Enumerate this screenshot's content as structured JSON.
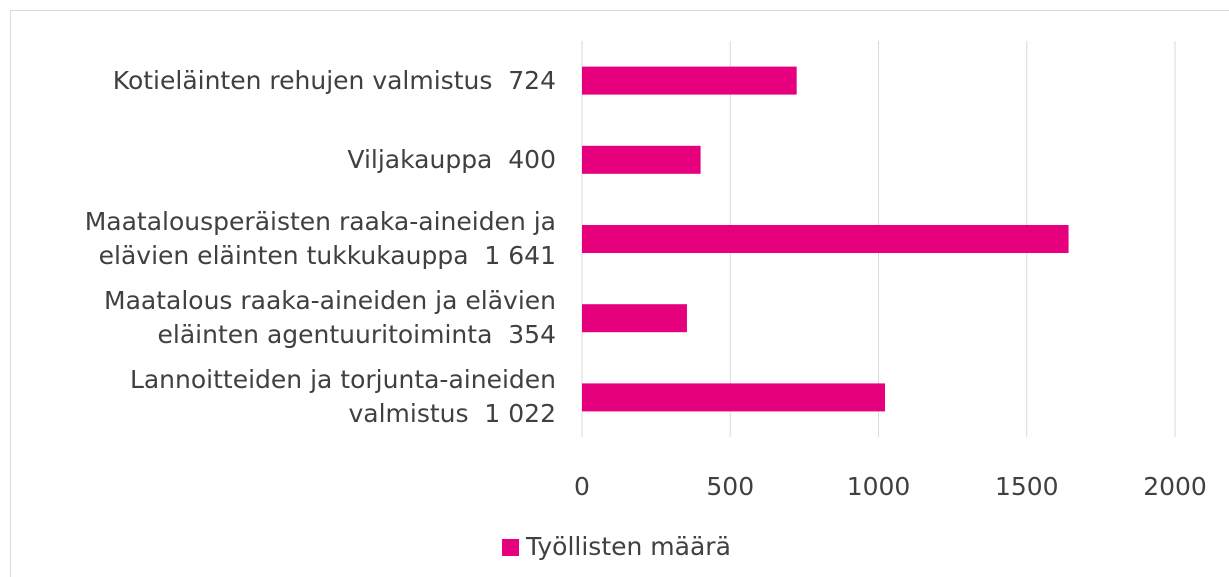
{
  "chart_data": {
    "type": "barh",
    "categories": [
      "Kotieläinten rehujen valmistus  724",
      "Viljakauppa  400",
      "Maatalousperäisten raaka-aineiden ja\nelävien eläinten tukkukauppa  1 641",
      "Maatalous raaka-aineiden ja elävien\neläinten agentuuritoiminta  354",
      "Lannoitteiden ja torjunta-aineiden\nvalmistus  1 022"
    ],
    "series": [
      {
        "name": "Työllisten määrä",
        "color": "#e6007e",
        "values": [
          724,
          400,
          1641,
          354,
          1022
        ]
      }
    ],
    "xlim": [
      0,
      2000
    ],
    "xticks": [
      0,
      500,
      1000,
      1500,
      2000
    ],
    "grid": true,
    "legend": "bottom"
  }
}
